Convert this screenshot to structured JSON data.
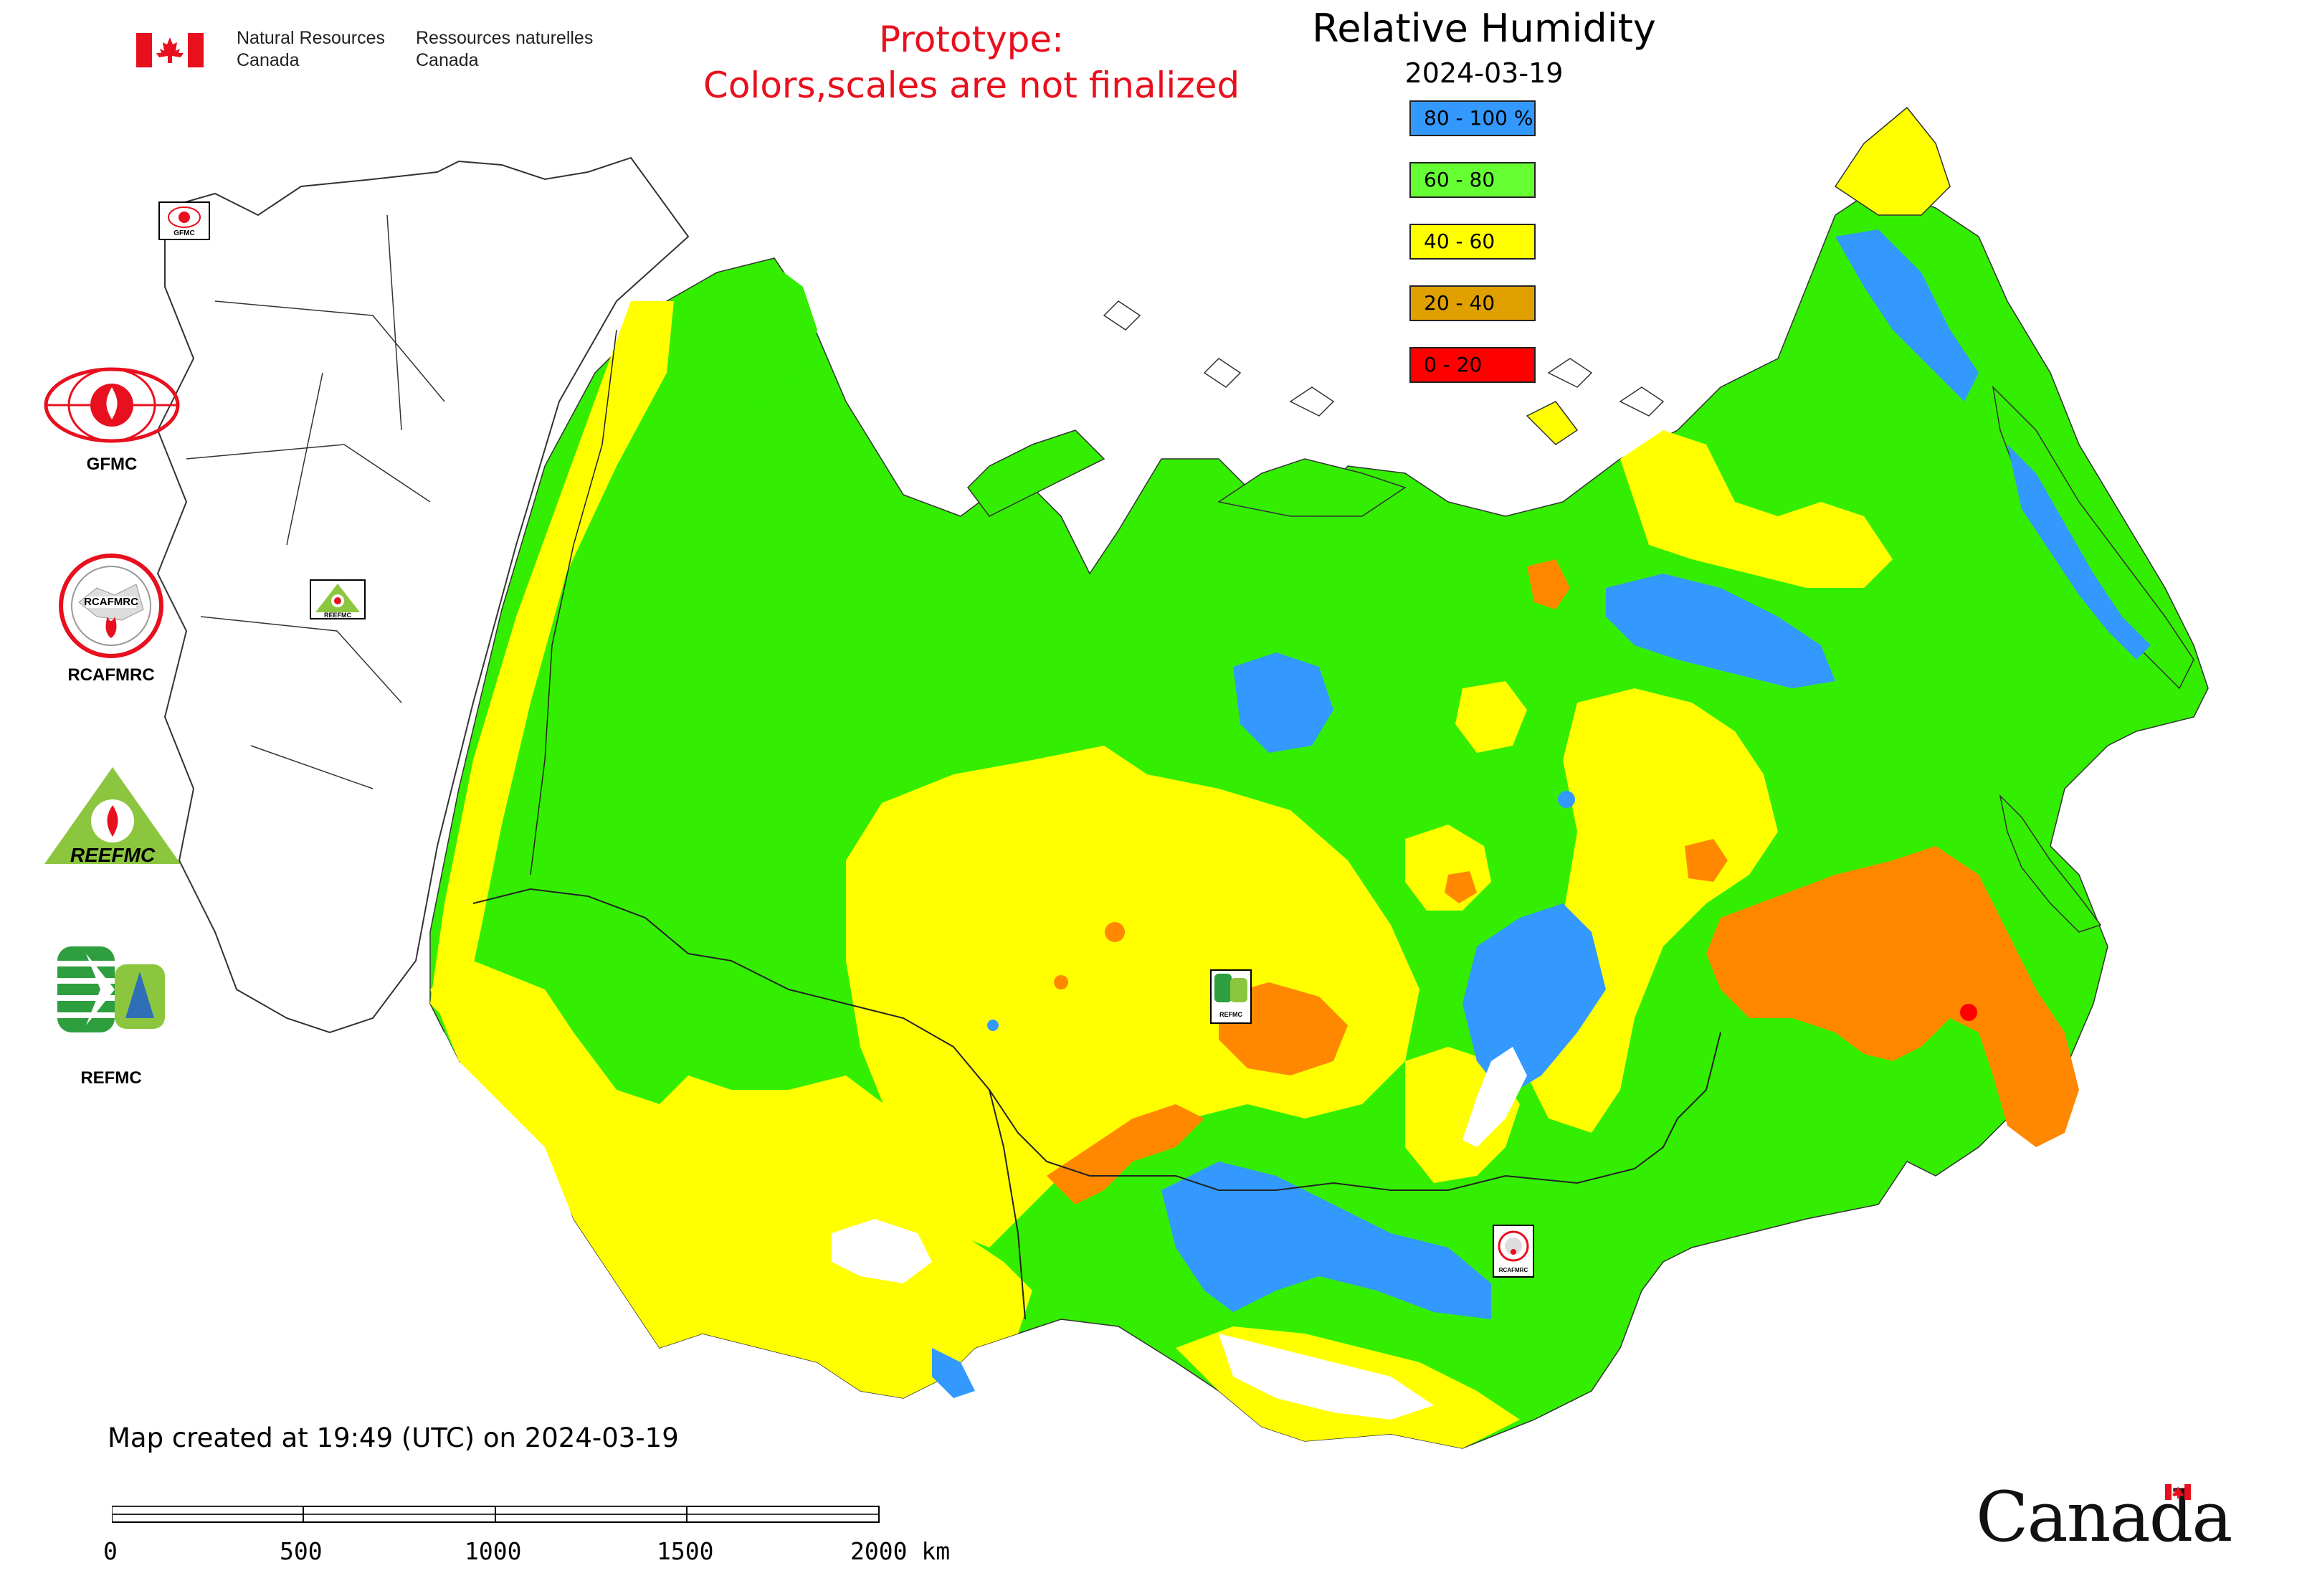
{
  "header": {
    "dept_en": "Natural Resources\nCanada",
    "dept_fr": "Ressources naturelles\nCanada",
    "prototype_line1": "Prototype:",
    "prototype_line2": "Colors,scales are not finalized"
  },
  "map": {
    "title": "Relative Humidity",
    "date": "2024-03-19",
    "legend": [
      {
        "label": "80 - 100 %",
        "color": "#3399ff"
      },
      {
        "label": "60 - 80",
        "color": "#66ff33"
      },
      {
        "label": "40 - 60",
        "color": "#ffff00"
      },
      {
        "label": "20 - 40",
        "color": "#e0a000"
      },
      {
        "label": "0 - 20",
        "color": "#ff0000"
      }
    ],
    "colors": {
      "white_gaps": "#ffffff",
      "boundaries": "#333333"
    }
  },
  "logos": {
    "gfmc": "GFMC",
    "rcafmrc": "RCAFMRC",
    "reefmc_text": "REEFMC",
    "refmc": "REFMC",
    "small_gfmc": "GFMC",
    "small_rcafmrc": "RCAFMRC",
    "small_refmc": "REFMC",
    "small_reefmc": "REEFMC"
  },
  "footer": {
    "created": "Map created at 19:49 (UTC) on 2024-03-19",
    "scale_labels": [
      "0",
      "500",
      "1000",
      "1500",
      "2000 km"
    ],
    "wordmark": "Canada"
  }
}
